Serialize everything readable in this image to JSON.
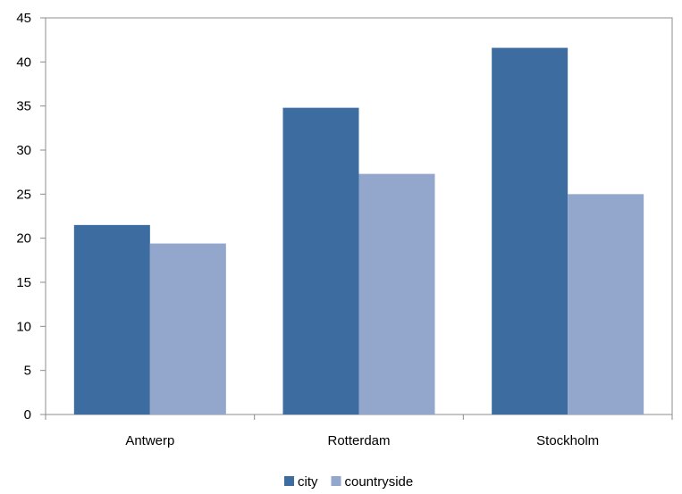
{
  "chart_data": {
    "type": "bar",
    "categories": [
      "Antwerp",
      "Rotterdam",
      "Stockholm"
    ],
    "series": [
      {
        "name": "city",
        "color": "#3D6DA0",
        "values": [
          21.5,
          34.8,
          41.6
        ]
      },
      {
        "name": "countryside",
        "color": "#93A7CD",
        "values": [
          19.4,
          27.3,
          25.0
        ]
      }
    ],
    "ylim": [
      0,
      45
    ],
    "yticks": [
      0,
      5,
      10,
      15,
      20,
      25,
      30,
      35,
      40,
      45
    ],
    "grid": false,
    "legend_position": "bottom",
    "title": "",
    "xlabel": "",
    "ylabel": ""
  }
}
